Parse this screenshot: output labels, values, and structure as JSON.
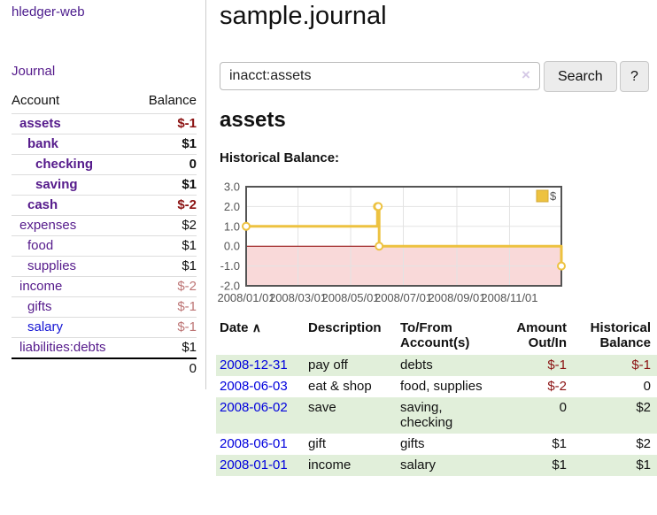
{
  "app": {
    "brand": "hledger-web"
  },
  "sidebar": {
    "journal_link": "Journal",
    "accounts_table": {
      "account_header": "Account",
      "balance_header": "Balance",
      "rows": [
        {
          "name": "assets",
          "balance": "$-1"
        },
        {
          "name": "bank",
          "balance": "$1"
        },
        {
          "name": "checking",
          "balance": "0"
        },
        {
          "name": "saving",
          "balance": "$1"
        },
        {
          "name": "cash",
          "balance": "$-2"
        },
        {
          "name": "expenses",
          "balance": "$2"
        },
        {
          "name": "food",
          "balance": "$1"
        },
        {
          "name": "supplies",
          "balance": "$1"
        },
        {
          "name": "income",
          "balance": "$-2"
        },
        {
          "name": "gifts",
          "balance": "$-1"
        },
        {
          "name": "salary",
          "balance": "$-1"
        },
        {
          "name": "liabilities:debts",
          "balance": "$1"
        }
      ],
      "total": "0"
    }
  },
  "main": {
    "title": "sample.journal",
    "search": {
      "value": "inacct:assets",
      "button_label": "Search",
      "help_label": "?"
    },
    "account_heading": "assets",
    "chart_heading": "Historical Balance:"
  },
  "icons": {
    "clear": "×",
    "sort_asc": "∧"
  },
  "colors": {
    "link_purple": "#551a8b",
    "link_blue": "#0000dd",
    "negative": "#8b1212",
    "negative_faded": "#bd7575",
    "row_green": "#e1efda",
    "series_gold": "#edc240"
  },
  "chart_data": {
    "type": "line",
    "title": "Historical Balance:",
    "x_domain": [
      "2008-01-01",
      "2008-12-31"
    ],
    "ylim": [
      -2,
      3
    ],
    "yticks": [
      3,
      2,
      1,
      0,
      -1,
      -2
    ],
    "xticks": [
      "2008/01/01",
      "2008/03/01",
      "2008/05/01",
      "2008/07/01",
      "2008/09/01",
      "2008/11/01"
    ],
    "series": [
      {
        "name": "$",
        "color": "#edc240",
        "step": true,
        "points": [
          [
            "2008-01-01",
            1
          ],
          [
            "2008-06-01",
            2
          ],
          [
            "2008-06-02",
            2
          ],
          [
            "2008-06-03",
            0
          ],
          [
            "2008-12-31",
            -1
          ]
        ]
      }
    ],
    "legend_position": "top-right",
    "grid": true,
    "colors": {
      "border": "#545454",
      "grid": "#e3e3e3",
      "zero_line": "#8b0000",
      "negative_region": "#f9d9d9",
      "legend_border": "#d4a934",
      "tick_text": "#545454"
    }
  },
  "register": {
    "headers": {
      "date": "Date",
      "description": "Description",
      "account": "To/From Account(s)",
      "amount": "Amount Out/In",
      "balance": "Historical Balance"
    },
    "rows": [
      {
        "date": "2008-12-31",
        "description": "pay off",
        "account": "debts",
        "amount": "$-1",
        "balance": "$-1"
      },
      {
        "date": "2008-06-03",
        "description": "eat & shop",
        "account": "food, supplies",
        "amount": "$-2",
        "balance": "0"
      },
      {
        "date": "2008-06-02",
        "description": "save",
        "account": "saving, checking",
        "amount": "0",
        "balance": "$2"
      },
      {
        "date": "2008-06-01",
        "description": "gift",
        "account": "gifts",
        "amount": "$1",
        "balance": "$2"
      },
      {
        "date": "2008-01-01",
        "description": "income",
        "account": "salary",
        "amount": "$1",
        "balance": "$1"
      }
    ]
  }
}
